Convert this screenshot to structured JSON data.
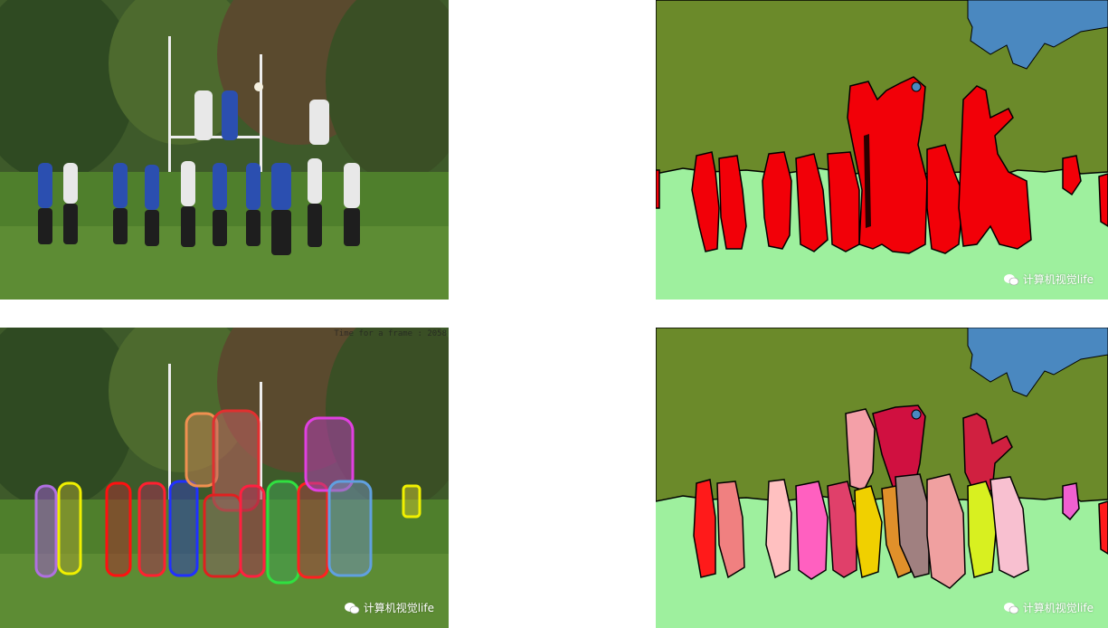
{
  "watermark": {
    "text": "计算机视觉life",
    "icon": "wechat-icon"
  },
  "overlay_text": "Time for a frame : 2058",
  "colors": {
    "sky_region": "#6b8a2a",
    "grass_region": "#9ef09e",
    "person_region": "#f20008",
    "tree_region": "#4a88c0",
    "background": "#ffffff"
  }
}
